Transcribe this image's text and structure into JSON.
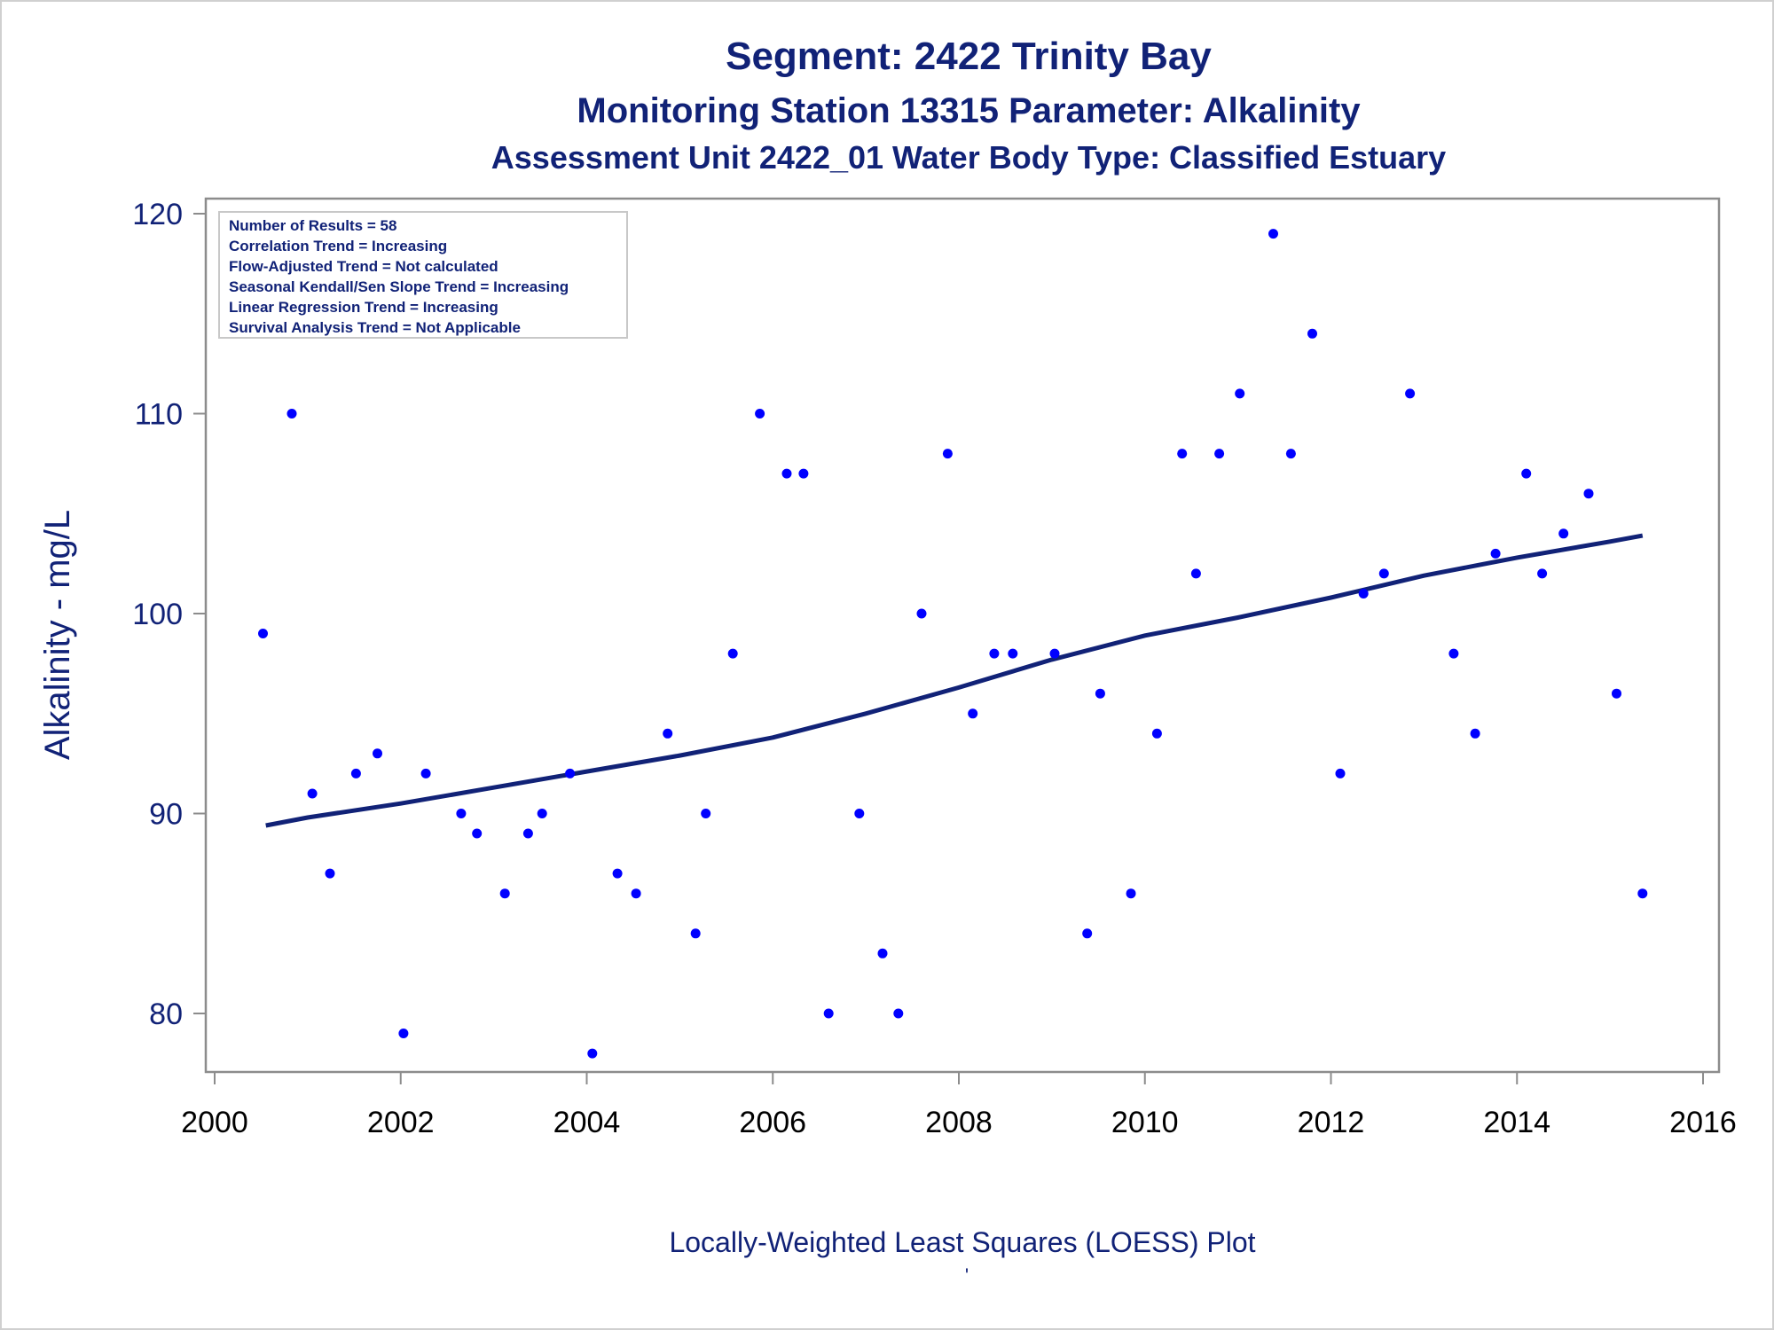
{
  "chart_data": {
    "type": "scatter",
    "title": "Segment: 2422  Trinity Bay",
    "subtitle": "Monitoring Station 13315 Parameter: Alkalinity",
    "subtitle2": "Assessment Unit 2422_01   Water Body Type: Classified Estuary",
    "xlabel": "",
    "ylabel": "Alkalinity - mg/L",
    "footnote": "Locally-Weighted Least Squares (LOESS) Plot",
    "footnote_mark": "'",
    "xlim": [
      2000,
      2016
    ],
    "ylim": [
      77.5,
      120.8
    ],
    "xticks": [
      2000,
      2002,
      2004,
      2006,
      2008,
      2010,
      2012,
      2014,
      2016
    ],
    "yticks": [
      80,
      90,
      100,
      110,
      120
    ],
    "grid": false,
    "stats_box": [
      "Number of Results = 58",
      "Correlation Trend = Increasing",
      "Flow-Adjusted Trend = Not calculated",
      "Seasonal Kendall/Sen Slope Trend = Increasing",
      "Linear Regression Trend = Increasing",
      "Survival Analysis Trend = Not Applicable"
    ],
    "point_color": "#0000ff",
    "line_color": "#112277",
    "series": [
      {
        "type": "scatter",
        "points": [
          {
            "x": 2000.52,
            "y": 99
          },
          {
            "x": 2000.83,
            "y": 110
          },
          {
            "x": 2001.05,
            "y": 91
          },
          {
            "x": 2001.24,
            "y": 87
          },
          {
            "x": 2001.52,
            "y": 92
          },
          {
            "x": 2001.75,
            "y": 93
          },
          {
            "x": 2002.03,
            "y": 79
          },
          {
            "x": 2002.27,
            "y": 92
          },
          {
            "x": 2002.65,
            "y": 90
          },
          {
            "x": 2002.82,
            "y": 89
          },
          {
            "x": 2003.12,
            "y": 86
          },
          {
            "x": 2003.37,
            "y": 89
          },
          {
            "x": 2003.52,
            "y": 90
          },
          {
            "x": 2003.82,
            "y": 92
          },
          {
            "x": 2004.06,
            "y": 78
          },
          {
            "x": 2004.33,
            "y": 87
          },
          {
            "x": 2004.53,
            "y": 86
          },
          {
            "x": 2004.87,
            "y": 94
          },
          {
            "x": 2005.17,
            "y": 84
          },
          {
            "x": 2005.28,
            "y": 90
          },
          {
            "x": 2005.57,
            "y": 98
          },
          {
            "x": 2005.86,
            "y": 110
          },
          {
            "x": 2006.15,
            "y": 107
          },
          {
            "x": 2006.33,
            "y": 107
          },
          {
            "x": 2006.6,
            "y": 80
          },
          {
            "x": 2006.93,
            "y": 90
          },
          {
            "x": 2007.18,
            "y": 83
          },
          {
            "x": 2007.35,
            "y": 80
          },
          {
            "x": 2007.6,
            "y": 100
          },
          {
            "x": 2007.88,
            "y": 108
          },
          {
            "x": 2008.15,
            "y": 95
          },
          {
            "x": 2008.38,
            "y": 98
          },
          {
            "x": 2008.58,
            "y": 98
          },
          {
            "x": 2009.03,
            "y": 98
          },
          {
            "x": 2009.38,
            "y": 84
          },
          {
            "x": 2009.52,
            "y": 96
          },
          {
            "x": 2009.85,
            "y": 86
          },
          {
            "x": 2010.13,
            "y": 94
          },
          {
            "x": 2010.4,
            "y": 108
          },
          {
            "x": 2010.55,
            "y": 102
          },
          {
            "x": 2010.8,
            "y": 108
          },
          {
            "x": 2011.02,
            "y": 111
          },
          {
            "x": 2011.38,
            "y": 119
          },
          {
            "x": 2011.57,
            "y": 108
          },
          {
            "x": 2011.8,
            "y": 114
          },
          {
            "x": 2012.1,
            "y": 92
          },
          {
            "x": 2012.35,
            "y": 101
          },
          {
            "x": 2012.57,
            "y": 102
          },
          {
            "x": 2012.85,
            "y": 111
          },
          {
            "x": 2013.32,
            "y": 98
          },
          {
            "x": 2013.55,
            "y": 94
          },
          {
            "x": 2013.77,
            "y": 103
          },
          {
            "x": 2014.1,
            "y": 107
          },
          {
            "x": 2014.27,
            "y": 102
          },
          {
            "x": 2014.5,
            "y": 104
          },
          {
            "x": 2014.77,
            "y": 106
          },
          {
            "x": 2015.07,
            "y": 96
          },
          {
            "x": 2015.35,
            "y": 86
          }
        ]
      },
      {
        "type": "line",
        "points": [
          {
            "x": 2000.55,
            "y": 89.4
          },
          {
            "x": 2001.0,
            "y": 89.8
          },
          {
            "x": 2002.0,
            "y": 90.5
          },
          {
            "x": 2003.0,
            "y": 91.3
          },
          {
            "x": 2004.0,
            "y": 92.1
          },
          {
            "x": 2005.0,
            "y": 92.9
          },
          {
            "x": 2006.0,
            "y": 93.8
          },
          {
            "x": 2007.0,
            "y": 95.0
          },
          {
            "x": 2008.0,
            "y": 96.3
          },
          {
            "x": 2009.0,
            "y": 97.7
          },
          {
            "x": 2010.0,
            "y": 98.9
          },
          {
            "x": 2011.0,
            "y": 99.8
          },
          {
            "x": 2012.0,
            "y": 100.8
          },
          {
            "x": 2013.0,
            "y": 101.9
          },
          {
            "x": 2014.0,
            "y": 102.8
          },
          {
            "x": 2015.0,
            "y": 103.6
          },
          {
            "x": 2015.35,
            "y": 103.9
          }
        ]
      }
    ]
  }
}
